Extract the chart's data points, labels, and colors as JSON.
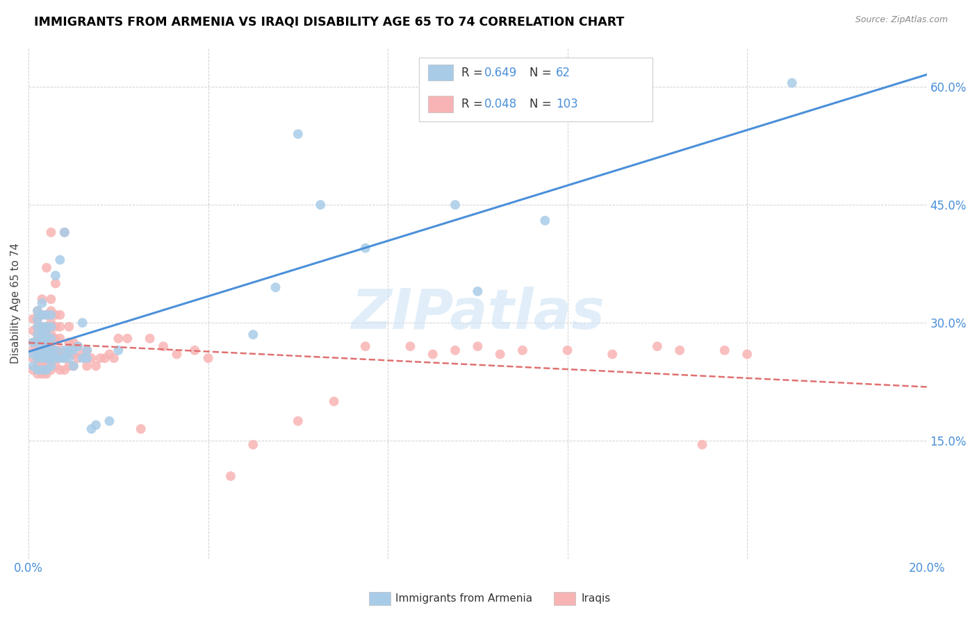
{
  "title": "IMMIGRANTS FROM ARMENIA VS IRAQI DISABILITY AGE 65 TO 74 CORRELATION CHART",
  "source": "Source: ZipAtlas.com",
  "ylabel": "Disability Age 65 to 74",
  "xlim": [
    0.0,
    0.2
  ],
  "ylim": [
    0.0,
    0.65
  ],
  "xticks": [
    0.0,
    0.04,
    0.08,
    0.12,
    0.16,
    0.2
  ],
  "yticks": [
    0.0,
    0.15,
    0.3,
    0.45,
    0.6
  ],
  "color_armenia": "#a8cce8",
  "color_iraq": "#f8b4b4",
  "color_line_armenia": "#4a90d9",
  "color_line_iraq": "#e07070",
  "watermark": "ZIPatlas",
  "legend_label_armenia": "Immigrants from Armenia",
  "legend_label_iraq": "Iraqis",
  "armenia_x": [
    0.001,
    0.001,
    0.001,
    0.002,
    0.002,
    0.002,
    0.002,
    0.002,
    0.002,
    0.002,
    0.002,
    0.003,
    0.003,
    0.003,
    0.003,
    0.003,
    0.003,
    0.003,
    0.003,
    0.004,
    0.004,
    0.004,
    0.004,
    0.004,
    0.004,
    0.004,
    0.005,
    0.005,
    0.005,
    0.005,
    0.005,
    0.005,
    0.006,
    0.006,
    0.006,
    0.007,
    0.007,
    0.008,
    0.008,
    0.008,
    0.009,
    0.009,
    0.01,
    0.01,
    0.011,
    0.012,
    0.012,
    0.013,
    0.013,
    0.014,
    0.015,
    0.018,
    0.02,
    0.05,
    0.055,
    0.06,
    0.065,
    0.075,
    0.095,
    0.1,
    0.115,
    0.17
  ],
  "armenia_y": [
    0.245,
    0.26,
    0.275,
    0.24,
    0.255,
    0.26,
    0.275,
    0.285,
    0.295,
    0.305,
    0.315,
    0.24,
    0.255,
    0.265,
    0.275,
    0.285,
    0.295,
    0.31,
    0.325,
    0.24,
    0.255,
    0.265,
    0.275,
    0.285,
    0.295,
    0.31,
    0.245,
    0.255,
    0.265,
    0.28,
    0.295,
    0.31,
    0.255,
    0.265,
    0.36,
    0.255,
    0.38,
    0.255,
    0.265,
    0.415,
    0.255,
    0.265,
    0.245,
    0.265,
    0.27,
    0.255,
    0.3,
    0.255,
    0.265,
    0.165,
    0.17,
    0.175,
    0.265,
    0.285,
    0.345,
    0.54,
    0.45,
    0.395,
    0.45,
    0.34,
    0.43,
    0.605
  ],
  "iraq_x": [
    0.001,
    0.001,
    0.001,
    0.001,
    0.001,
    0.001,
    0.002,
    0.002,
    0.002,
    0.002,
    0.002,
    0.002,
    0.002,
    0.002,
    0.002,
    0.003,
    0.003,
    0.003,
    0.003,
    0.003,
    0.003,
    0.003,
    0.003,
    0.003,
    0.004,
    0.004,
    0.004,
    0.004,
    0.004,
    0.004,
    0.004,
    0.004,
    0.004,
    0.005,
    0.005,
    0.005,
    0.005,
    0.005,
    0.005,
    0.005,
    0.005,
    0.005,
    0.006,
    0.006,
    0.006,
    0.006,
    0.006,
    0.006,
    0.006,
    0.007,
    0.007,
    0.007,
    0.007,
    0.007,
    0.007,
    0.008,
    0.008,
    0.008,
    0.008,
    0.009,
    0.009,
    0.009,
    0.009,
    0.01,
    0.01,
    0.01,
    0.011,
    0.011,
    0.012,
    0.013,
    0.013,
    0.014,
    0.015,
    0.016,
    0.017,
    0.018,
    0.019,
    0.02,
    0.022,
    0.025,
    0.027,
    0.03,
    0.033,
    0.037,
    0.04,
    0.045,
    0.05,
    0.06,
    0.068,
    0.075,
    0.085,
    0.09,
    0.095,
    0.1,
    0.105,
    0.11,
    0.12,
    0.13,
    0.14,
    0.145,
    0.15,
    0.155,
    0.16
  ],
  "iraq_y": [
    0.24,
    0.255,
    0.265,
    0.275,
    0.29,
    0.305,
    0.235,
    0.245,
    0.255,
    0.265,
    0.275,
    0.285,
    0.295,
    0.305,
    0.315,
    0.235,
    0.245,
    0.255,
    0.265,
    0.275,
    0.285,
    0.295,
    0.31,
    0.33,
    0.235,
    0.245,
    0.255,
    0.265,
    0.275,
    0.285,
    0.295,
    0.31,
    0.37,
    0.24,
    0.25,
    0.26,
    0.27,
    0.285,
    0.3,
    0.315,
    0.33,
    0.415,
    0.245,
    0.255,
    0.265,
    0.28,
    0.295,
    0.31,
    0.35,
    0.24,
    0.255,
    0.265,
    0.28,
    0.295,
    0.31,
    0.24,
    0.255,
    0.415,
    0.26,
    0.245,
    0.26,
    0.275,
    0.295,
    0.245,
    0.26,
    0.275,
    0.255,
    0.27,
    0.26,
    0.245,
    0.265,
    0.255,
    0.245,
    0.255,
    0.255,
    0.26,
    0.255,
    0.28,
    0.28,
    0.165,
    0.28,
    0.27,
    0.26,
    0.265,
    0.255,
    0.105,
    0.145,
    0.175,
    0.2,
    0.27,
    0.27,
    0.26,
    0.265,
    0.27,
    0.26,
    0.265,
    0.265,
    0.26,
    0.27,
    0.265,
    0.145,
    0.265,
    0.26
  ]
}
